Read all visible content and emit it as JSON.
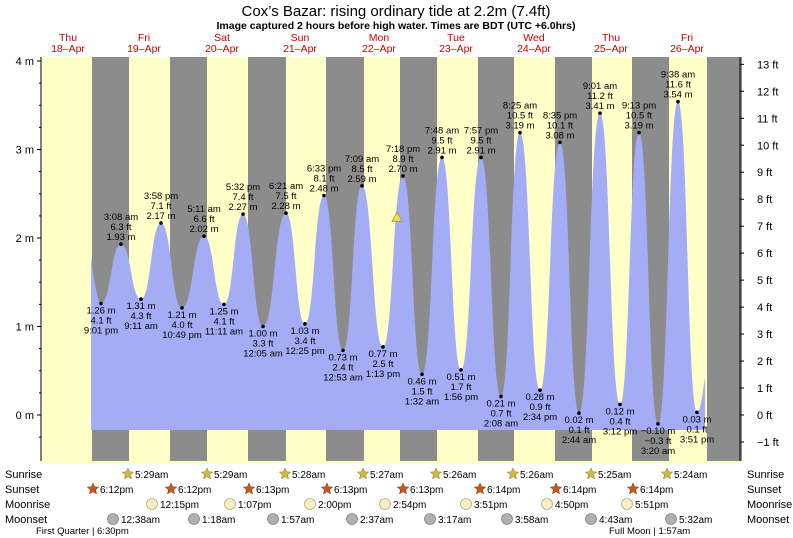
{
  "chart_data": {
    "type": "area",
    "title": "Cox’s Bazar: rising  ordinary tide at 2.2m (7.4ft)",
    "subtitle": "Image captured 2 hours before high water. Times are BDT (UTC +6.0hrs)",
    "y_left": {
      "label_unit": "m",
      "ticks": [
        "0 m",
        "1 m",
        "2 m",
        "3 m",
        "4 m"
      ],
      "range": [
        -0.35,
        4.0
      ]
    },
    "y_right": {
      "ticks": [
        "−1 ft",
        "0 ft",
        "1 ft",
        "2 ft",
        "3 ft",
        "4 ft",
        "5 ft",
        "6 ft",
        "7 ft",
        "8 ft",
        "9 ft",
        "10 ft",
        "11 ft",
        "12 ft",
        "13 ft"
      ]
    },
    "days": [
      {
        "dow": "Thu",
        "date": "18–Apr"
      },
      {
        "dow": "Fri",
        "date": "19–Apr"
      },
      {
        "dow": "Sat",
        "date": "20–Apr"
      },
      {
        "dow": "Sun",
        "date": "21–Apr"
      },
      {
        "dow": "Mon",
        "date": "22–Apr"
      },
      {
        "dow": "Tue",
        "date": "23–Apr"
      },
      {
        "dow": "Wed",
        "date": "24–Apr"
      },
      {
        "dow": "Thu",
        "date": "25–Apr"
      },
      {
        "dow": "Fri",
        "date": "26–Apr"
      }
    ],
    "current": {
      "height_m": 2.2
    },
    "tides": [
      {
        "type": "low",
        "height_m": 1.26,
        "lines": [
          "1.26 m",
          "4.1 ft",
          "9:01 pm"
        ]
      },
      {
        "type": "high",
        "height_m": 1.93,
        "lines": [
          "3:08 am",
          "6.3 ft",
          "1.93 m"
        ]
      },
      {
        "type": "low",
        "height_m": 1.31,
        "lines": [
          "1.31 m",
          "4.3 ft",
          "9:11 am"
        ]
      },
      {
        "type": "high",
        "height_m": 2.17,
        "lines": [
          "3:58 pm",
          "7.1 ft",
          "2.17 m"
        ]
      },
      {
        "type": "low",
        "height_m": 1.21,
        "lines": [
          "1.21 m",
          "4.0 ft",
          "10:49 pm"
        ]
      },
      {
        "type": "high",
        "height_m": 2.02,
        "lines": [
          "5:11 am",
          "6.6 ft",
          "2.02 m"
        ]
      },
      {
        "type": "low",
        "height_m": 1.25,
        "lines": [
          "1.25 m",
          "4.1 ft",
          "11:11 am"
        ]
      },
      {
        "type": "high",
        "height_m": 2.27,
        "lines": [
          "5:32 pm",
          "7.4 ft",
          "2.27 m"
        ]
      },
      {
        "type": "low",
        "height_m": 1.0,
        "lines": [
          "1.00 m",
          "3.3 ft",
          "12:05 am"
        ]
      },
      {
        "type": "high",
        "height_m": 2.28,
        "lines": [
          "6:21 am",
          "7.5 ft",
          "2.28 m"
        ]
      },
      {
        "type": "low",
        "height_m": 1.03,
        "lines": [
          "1.03 m",
          "3.4 ft",
          "12:25 pm"
        ]
      },
      {
        "type": "high",
        "height_m": 2.48,
        "lines": [
          "6:33 pm",
          "8.1 ft",
          "2.48 m"
        ]
      },
      {
        "type": "low",
        "height_m": 0.73,
        "lines": [
          "0.73 m",
          "2.4 ft",
          "12:53 am"
        ]
      },
      {
        "type": "high",
        "height_m": 2.59,
        "lines": [
          "7:09 am",
          "8.5 ft",
          "2.59 m"
        ]
      },
      {
        "type": "low",
        "height_m": 0.77,
        "lines": [
          "0.77 m",
          "2.5 ft",
          "1:13 pm"
        ]
      },
      {
        "type": "high",
        "height_m": 2.7,
        "lines": [
          "7:18 pm",
          "8.9 ft",
          "2.70 m"
        ]
      },
      {
        "type": "low",
        "height_m": 0.46,
        "lines": [
          "0.46 m",
          "1.5 ft",
          "1:32 am"
        ]
      },
      {
        "type": "high",
        "height_m": 2.91,
        "lines": [
          "7:48 am",
          "9.5 ft",
          "2.91 m"
        ]
      },
      {
        "type": "low",
        "height_m": 0.51,
        "lines": [
          "0.51 m",
          "1.7 ft",
          "1:56 pm"
        ]
      },
      {
        "type": "high",
        "height_m": 2.91,
        "lines": [
          "7:57 pm",
          "9.5 ft",
          "2.91 m"
        ]
      },
      {
        "type": "low",
        "height_m": 0.21,
        "lines": [
          "0.21 m",
          "0.7 ft",
          "2:08 am"
        ]
      },
      {
        "type": "high",
        "height_m": 3.19,
        "lines": [
          "8:25 am",
          "10.5 ft",
          "3.19 m"
        ]
      },
      {
        "type": "low",
        "height_m": 0.28,
        "lines": [
          "0.28 m",
          "0.9 ft",
          "2:34 pm"
        ]
      },
      {
        "type": "high",
        "height_m": 3.08,
        "lines": [
          "8:35 pm",
          "10.1 ft",
          "3.08 m"
        ]
      },
      {
        "type": "low",
        "height_m": 0.02,
        "lines": [
          "0.02 m",
          "0.1 ft",
          "2:44 am"
        ]
      },
      {
        "type": "high",
        "height_m": 3.41,
        "lines": [
          "9:01 am",
          "11.2 ft",
          "3.41 m"
        ]
      },
      {
        "type": "low",
        "height_m": 0.12,
        "lines": [
          "0.12 m",
          "0.4 ft",
          "3:12 pm"
        ]
      },
      {
        "type": "high",
        "height_m": 3.19,
        "lines": [
          "9:13 pm",
          "10.5 ft",
          "3.19 m"
        ]
      },
      {
        "type": "low",
        "height_m": -0.1,
        "lines": [
          "−0.10 m",
          "−0.3 ft",
          "3:20 am"
        ]
      },
      {
        "type": "high",
        "height_m": 3.54,
        "lines": [
          "9:38 am",
          "11.6 ft",
          "3.54 m"
        ]
      },
      {
        "type": "low",
        "height_m": 0.03,
        "lines": [
          "0.03 m",
          "0.1 ft",
          "3:51 pm"
        ]
      }
    ]
  },
  "astro": {
    "row_labels": [
      "Sunrise",
      "Sunset",
      "Moonrise",
      "Moonset"
    ],
    "sunrise": [
      "5:29am",
      "5:29am",
      "5:28am",
      "5:27am",
      "5:26am",
      "5:26am",
      "5:25am",
      "5:24am"
    ],
    "sunset": [
      "6:12pm",
      "6:12pm",
      "6:13pm",
      "6:13pm",
      "6:13pm",
      "6:14pm",
      "6:14pm",
      "6:14pm"
    ],
    "moonrise": [
      "12:15pm",
      "1:07pm",
      "2:00pm",
      "2:54pm",
      "3:51pm",
      "4:50pm",
      "5:51pm"
    ],
    "moonset": [
      "12:38am",
      "1:18am",
      "1:57am",
      "2:37am",
      "3:17am",
      "3:58am",
      "4:43am",
      "5:32am"
    ],
    "moon_phases": [
      "First Quarter | 6:30pm",
      "Full Moon | 1:57am"
    ],
    "colors": {
      "sun": "#cdb84a",
      "sunset": "#c25a1a",
      "moonrise": "#f4f0c4",
      "moonset": "#b0b0b0"
    }
  },
  "colors": {
    "day": "#ffffc8",
    "night": "#8c8c8c",
    "water": "#a4acf6",
    "day_label": "#cc0000",
    "marker": "#e8e05a"
  }
}
